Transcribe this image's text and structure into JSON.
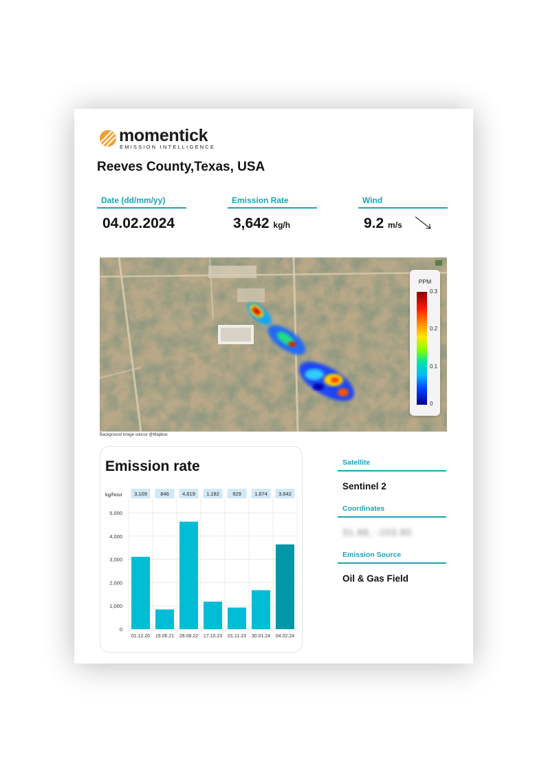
{
  "brand": {
    "name": "momentick",
    "tagline": "EMISSION INTELLIGENCE",
    "colors": {
      "accent": "#1ba3b5",
      "logo": "#f0a030"
    }
  },
  "location": "Reeves County,Texas, USA",
  "metrics": {
    "date": {
      "label": "Date (dd/mm/yy)",
      "value": "04.02.2024"
    },
    "emission_rate": {
      "label": "Emission Rate",
      "value": "3,642",
      "unit": "kg/h"
    },
    "wind": {
      "label": "Wind",
      "value": "9.2",
      "unit": "m/s",
      "icon": "wind-direction-arrow-icon"
    }
  },
  "map": {
    "credit": "Background image source @Mapbox",
    "legend": {
      "title": "PPM",
      "ticks": [
        "0.3",
        "0.2",
        "0.1",
        "0"
      ]
    }
  },
  "chart_data": {
    "type": "bar",
    "title": "Emission rate",
    "ylabel": "kg/hour",
    "categories": [
      "01.12.20",
      "19.06.21",
      "28.08.22",
      "17.10.23",
      "01.11.23",
      "30.01.24",
      "04.02.24"
    ],
    "values": [
      3109,
      846,
      4619,
      1182,
      929,
      1674,
      3642
    ],
    "data_labels": [
      "3,109",
      "846",
      "4,619",
      "1,182",
      "929",
      "1,674",
      "3,642"
    ],
    "y_ticks": [
      "0",
      "1,000",
      "2,000",
      "3,000",
      "4,000",
      "5,000"
    ],
    "ylim": [
      0,
      5000
    ],
    "grid": true,
    "colors": {
      "bar": "#00bcd4",
      "highlight": "#0097a7",
      "label_bg": "#d3e8f5"
    }
  },
  "info": {
    "satellite": {
      "label": "Satellite",
      "value": "Sentinel 2"
    },
    "coordinates": {
      "label": "Coordinates",
      "value": "31.66, -103.80"
    },
    "emission_source": {
      "label": "Emission Source",
      "value": "Oil & Gas Field"
    }
  }
}
